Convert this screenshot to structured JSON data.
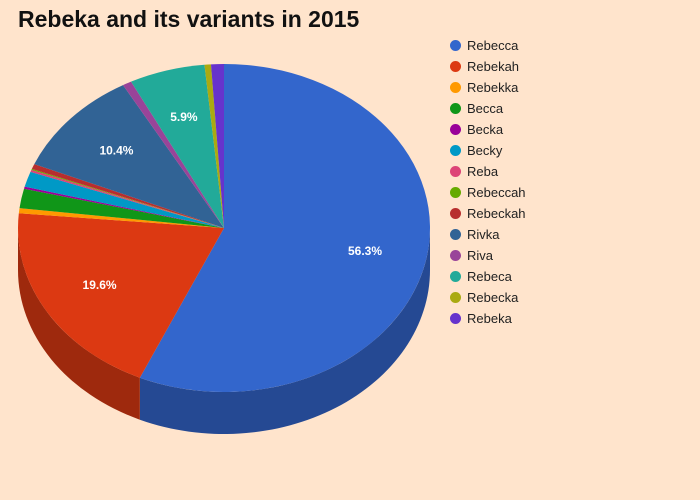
{
  "title": "Rebeka and its variants in 2015",
  "chart_data": {
    "type": "pie",
    "title": "Rebeka and its variants in 2015",
    "labels": [
      "Rebecca",
      "Rebekah",
      "Rebekka",
      "Becca",
      "Becka",
      "Becky",
      "Reba",
      "Rebeccah",
      "Rebeckah",
      "Rivka",
      "Riva",
      "Rebeca",
      "Rebecka",
      "Rebeka"
    ],
    "values": [
      56.3,
      19.6,
      0.5,
      1.9,
      0.2,
      1.5,
      0.2,
      0.1,
      0.5,
      10.4,
      0.7,
      5.9,
      0.5,
      1.0
    ],
    "colors": [
      "#3366CC",
      "#DC3912",
      "#FF9900",
      "#109618",
      "#990099",
      "#0099C6",
      "#DD4477",
      "#66AA00",
      "#B82E2E",
      "#316395",
      "#994499",
      "#22AA99",
      "#AAAA11",
      "#6633CC"
    ],
    "data_labels": [
      "56.3%",
      "19.6%",
      "",
      "",
      "",
      "",
      "",
      "",
      "",
      "10.4%",
      "",
      "5.9%",
      "",
      ""
    ],
    "is_3d": true,
    "legend_position": "right"
  }
}
